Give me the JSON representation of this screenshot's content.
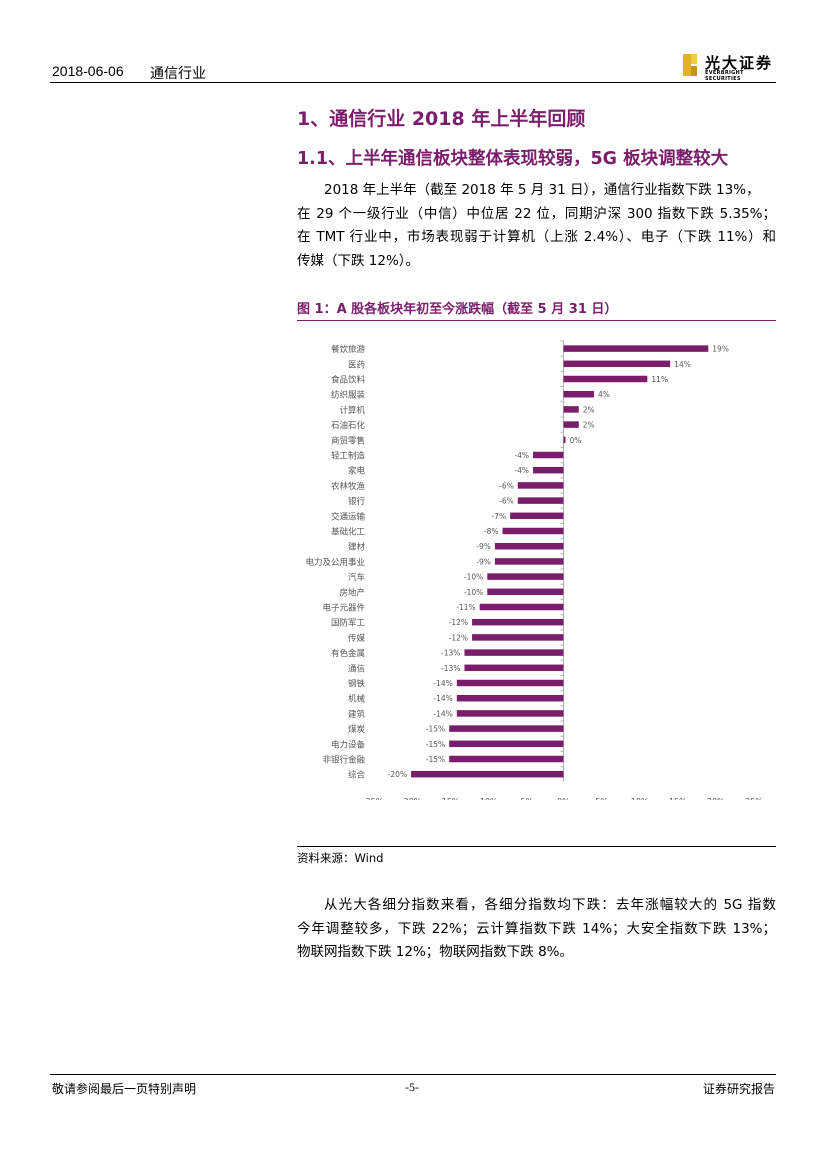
{
  "header": {
    "date": "2018-06-06",
    "industry": "通信行业",
    "logo_cn": "光大证券",
    "logo_en": "EVERBRIGHT SECURITIES"
  },
  "section": {
    "title": "1、通信行业 2018 年上半年回顾",
    "subtitle": "1.1、上半年通信板块整体表现较弱，5G 板块调整较大"
  },
  "paragraph1": [
    "2018 年上半年（截至 2018 年 5 月 31 日），通信行业指数下跌 13%，",
    "在 29 个一级行业（中信）中位居 22 位，同期沪深 300 指数下跌 5.35%；",
    "在 TMT 行业中，市场表现弱于计算机（上涨 2.4%）、电子（下跌 11%）和",
    "传媒（下跌 12%）。"
  ],
  "figure": {
    "title": "图 1：A 股各板块年初至今涨跌幅（截至 5 月 31 日）",
    "source": "资料来源：Wind"
  },
  "paragraph2": [
    "从光大各细分指数来看，各细分指数均下跌：去年涨幅较大的 5G 指数",
    "今年调整较多，下跌 22%；云计算指数下跌 14%；大安全指数下跌 13%；",
    "物联网指数下跌 12%；物联网指数下跌 8%。"
  ],
  "footer": {
    "left": "敬请参阅最后一页特别声明",
    "page": "-5-",
    "right": "证券研究报告"
  },
  "chart_data": {
    "type": "bar",
    "orientation": "horizontal",
    "bar_color": "#7a1e6c",
    "categories": [
      "餐饮旅游",
      "医药",
      "食品饮料",
      "纺织服装",
      "计算机",
      "石油石化",
      "商贸零售",
      "轻工制造",
      "家电",
      "农林牧渔",
      "银行",
      "交通运输",
      "基础化工",
      "建材",
      "电力及公用事业",
      "汽车",
      "房地产",
      "电子元器件",
      "国防军工",
      "传媒",
      "有色金属",
      "通信",
      "钢铁",
      "机械",
      "建筑",
      "煤炭",
      "电力设备",
      "非银行金融",
      "综合"
    ],
    "values": [
      19,
      14,
      11,
      4,
      2,
      2,
      0,
      -4,
      -4,
      -6,
      -6,
      -7,
      -8,
      -9,
      -9,
      -10,
      -10,
      -11,
      -12,
      -12,
      -13,
      -13,
      -14,
      -14,
      -14,
      -15,
      -15,
      -15,
      -20
    ],
    "value_labels": [
      "19%",
      "14%",
      "11%",
      "4%",
      "2%",
      "2%",
      "0%",
      "-4%",
      "-4%",
      "-6%",
      "-6%",
      "-7%",
      "-8%",
      "-9%",
      "-9%",
      "-10%",
      "-10%",
      "-11%",
      "-12%",
      "-12%",
      "-13%",
      "-13%",
      "-14%",
      "-14%",
      "-14%",
      "-15%",
      "-15%",
      "-15%",
      "-20%"
    ],
    "x_ticks": [
      "-25%",
      "-20%",
      "-15%",
      "-10%",
      "-5%",
      "0%",
      "5%",
      "10%",
      "15%",
      "20%",
      "25%"
    ],
    "xlim": [
      -25,
      25
    ],
    "legend": "none",
    "grid": false
  }
}
